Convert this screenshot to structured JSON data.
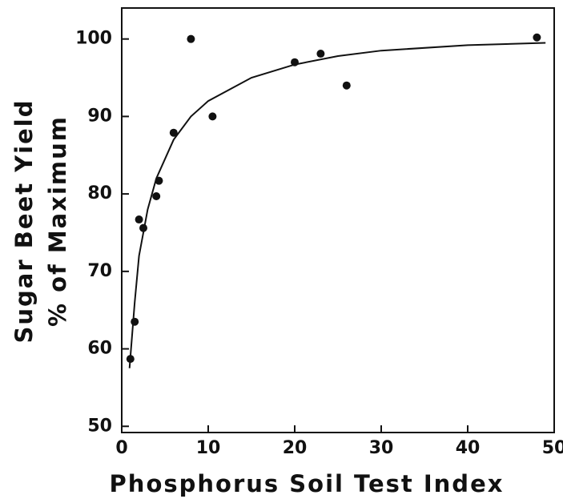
{
  "chart_data": {
    "type": "scatter",
    "x_label": "Phosphorus Soil Test Index",
    "y_label": [
      "Sugar Beet Yield",
      "% of Maximum"
    ],
    "x": [
      1,
      1.5,
      2,
      2.5,
      4,
      4.3,
      6,
      8,
      10.5,
      20,
      23,
      26,
      48
    ],
    "values": [
      58.7,
      63.5,
      76.7,
      75.6,
      79.7,
      81.7,
      87.9,
      100,
      90,
      97,
      98.1,
      94,
      100.2
    ],
    "color": "#111111",
    "fit": {
      "x": [
        0.9,
        1.5,
        2,
        3,
        4,
        6,
        8,
        10,
        15,
        20,
        25,
        30,
        40,
        49
      ],
      "values": [
        57.5,
        66,
        72,
        78,
        82,
        87,
        90,
        92,
        95,
        96.7,
        97.8,
        98.5,
        99.2,
        99.5
      ]
    },
    "xlim": [
      0,
      50
    ],
    "xticks": [
      0,
      10,
      20,
      30,
      40,
      50
    ],
    "ylim": [
      49.2,
      104
    ],
    "yticks": [
      50,
      60,
      70,
      80,
      90,
      100
    ]
  }
}
